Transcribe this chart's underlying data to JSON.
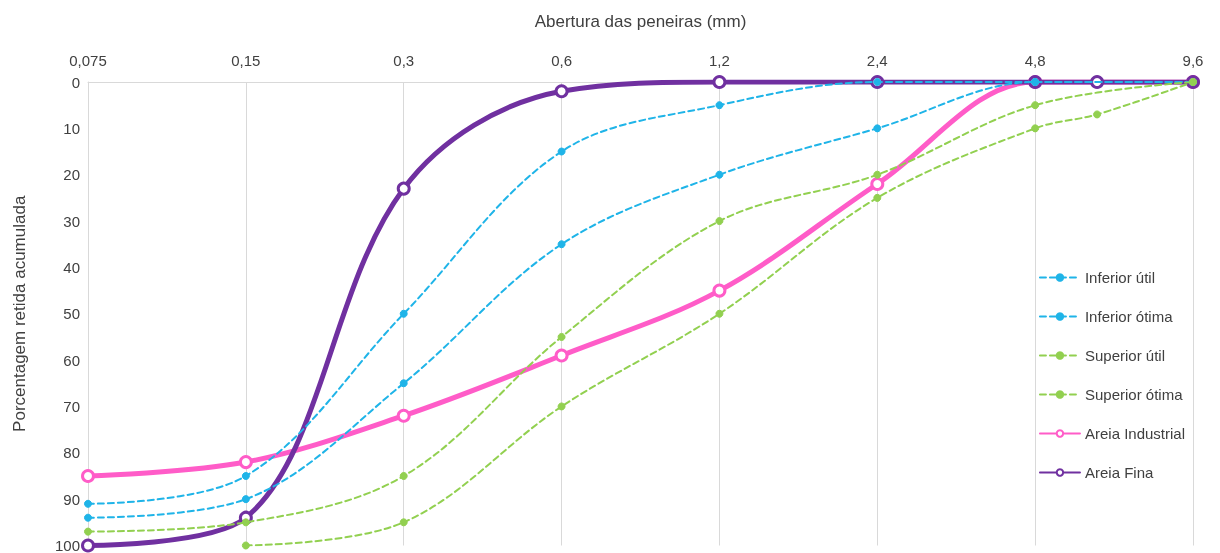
{
  "chart_data": {
    "type": "line",
    "xlabel": "Abertura das peneiras (mm)",
    "ylabel": "Porcentagem retida acumulada",
    "log": "x",
    "x": [
      0.075,
      0.15,
      0.3,
      0.6,
      1.2,
      2.4,
      4.8,
      9.6
    ],
    "xlim": [
      0.075,
      9.6
    ],
    "xticks": [
      {
        "value": 0.075,
        "label": "0,075"
      },
      {
        "value": 0.15,
        "label": "0,15"
      },
      {
        "value": 0.3,
        "label": "0,3"
      },
      {
        "value": 0.6,
        "label": "0,6"
      },
      {
        "value": 1.2,
        "label": "1,2"
      },
      {
        "value": 2.4,
        "label": "2,4"
      },
      {
        "value": 4.8,
        "label": "4,8"
      },
      {
        "value": 9.6,
        "label": "9,6"
      }
    ],
    "ylim": [
      100,
      0
    ],
    "yticks": [
      0,
      10,
      20,
      30,
      40,
      50,
      60,
      70,
      80,
      90,
      100
    ],
    "grid": "x",
    "legend": "right",
    "marker": "circle",
    "series": [
      {
        "name": "Inferior útil",
        "color": "#1fb4e8",
        "line_style": "dashed",
        "values": [
          91,
          85,
          50,
          15,
          5,
          0,
          0,
          0
        ]
      },
      {
        "name": "Inferior ótima",
        "color": "#1fb4e8",
        "line_style": "dashed",
        "values": [
          94,
          90,
          65,
          35,
          20,
          10,
          0,
          0
        ]
      },
      {
        "name": "Superior útil",
        "color": "#92d050",
        "line_style": "dashed",
        "x": [
          0.15,
          0.3,
          0.6,
          1.2,
          2.4,
          4.8,
          6.3,
          9.6
        ],
        "values": [
          100,
          95,
          70,
          50,
          25,
          10,
          7,
          0
        ]
      },
      {
        "name": "Superior ótima",
        "color": "#92d050",
        "line_style": "dashed",
        "values": [
          97,
          95,
          85,
          55,
          30,
          20,
          5,
          0
        ]
      },
      {
        "name": "Areia Industrial",
        "color": "#ff5cc8",
        "line_style": "solid",
        "values": [
          85,
          82,
          72,
          59,
          45,
          22,
          0,
          0
        ]
      },
      {
        "name": "Areia Fina",
        "color": "#7030a0",
        "line_style": "solid",
        "x": [
          0.075,
          0.15,
          0.3,
          0.6,
          1.2,
          2.4,
          4.8,
          6.3,
          9.6
        ],
        "values": [
          100,
          94,
          23,
          2,
          0,
          0,
          0,
          0,
          0
        ]
      }
    ]
  }
}
